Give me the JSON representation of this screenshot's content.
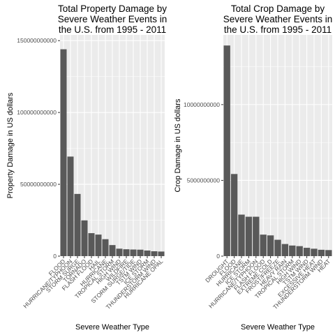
{
  "chart_data": [
    {
      "type": "bar",
      "title_lines": [
        "Total Property Damage by",
        "Severe Weather Events in",
        "the U.S. from 1995 - 2011"
      ],
      "xlabel": "Severe Weather Type",
      "ylabel": "Property Damage in US dollars",
      "categories": [
        "FLOOD",
        "HURRICANE/TYPHOON",
        "STORM SURGE",
        "TORNADO",
        "FLASH FLOOD",
        "HAIL",
        "HURRICANE",
        "TROPICAL STORM",
        "HIGH WIND",
        "WILDFIRE",
        "STORM SURGE/TIDE",
        "TSTM WIND",
        "ICE STORM",
        "THUNDERSTORM WIND",
        "HURRICANE OPAL"
      ],
      "values": [
        144000000000,
        69300000000,
        43300000000,
        24900000000,
        16000000000,
        15000000000,
        11800000000,
        7700000000,
        5200000000,
        4800000000,
        4600000000,
        4500000000,
        3900000000,
        3400000000,
        3200000000
      ],
      "yticks": [
        0,
        50000000000,
        100000000000,
        150000000000
      ],
      "ytick_labels": [
        "0",
        "50000000000",
        "100000000000",
        "150000000000"
      ],
      "ylim": [
        0,
        154000000000
      ],
      "grid": true,
      "bar_color": "#595959",
      "panel_color": "#ebebeb"
    },
    {
      "type": "bar",
      "title_lines": [
        "Total Crop Damage by",
        "Severe Weather Events in",
        "the U.S. from 1995 - 2011"
      ],
      "xlabel": "Severe Weather Type",
      "ylabel": "Crop Damage in US dollars",
      "categories": [
        "DROUGHT",
        "FLOOD",
        "HURRICANE",
        "ICE STORM",
        "HURRICANE/TYPHOON",
        "FLASH FLOOD",
        "EXTREME COLD",
        "FROST/FREEZE",
        "HEAVY RAIN",
        "TROPICAL STORM",
        "HIGH WIND",
        "TSTM WIND",
        "EXCESSIVE HEAT",
        "THUNDERSTORM WIND",
        "HEAT"
      ],
      "values": [
        13900000000,
        5420000000,
        2740000000,
        2600000000,
        2600000000,
        1420000000,
        1370000000,
        1080000000,
        800000000,
        700000000,
        660000000,
        550000000,
        490000000,
        420000000,
        400000000
      ],
      "yticks": [
        0,
        5000000000,
        10000000000
      ],
      "ytick_labels": [
        "0",
        "5000000000",
        "10000000000"
      ],
      "ylim": [
        0,
        14600000000
      ],
      "grid": true,
      "bar_color": "#595959",
      "panel_color": "#ebebeb"
    }
  ]
}
